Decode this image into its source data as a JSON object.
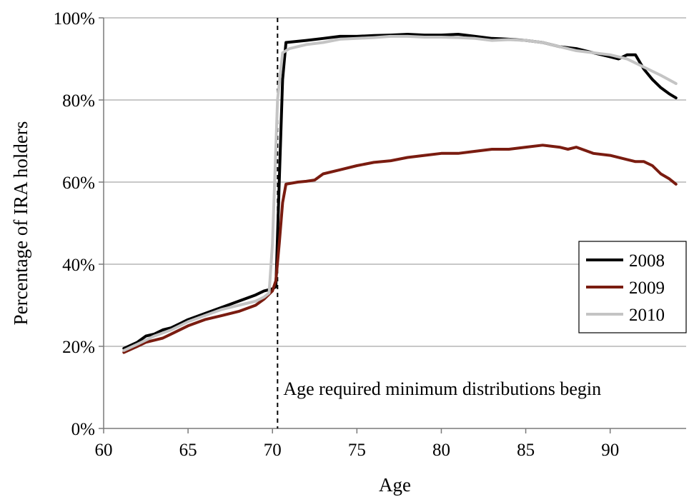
{
  "chart_data": {
    "type": "line",
    "title": "",
    "xlabel": "Age",
    "ylabel": "Percentage of IRA holders",
    "xlim": [
      60,
      94.5
    ],
    "ylim": [
      0,
      100
    ],
    "xticks": [
      60,
      65,
      70,
      75,
      80,
      85,
      90
    ],
    "yticks": [
      0,
      20,
      40,
      60,
      80,
      100
    ],
    "ytick_labels": [
      "0%",
      "20%",
      "40%",
      "60%",
      "80%",
      "100%"
    ],
    "grid": "horizontal",
    "legend": "right-middle",
    "annotation": {
      "text": "Age required minimum distributions begin",
      "x": 70.3
    },
    "series": [
      {
        "name": "2008",
        "color": "#000000",
        "x": [
          61.2,
          62.0,
          62.5,
          63.0,
          63.5,
          64.0,
          65.0,
          66.0,
          67.0,
          68.0,
          69.0,
          69.5,
          70.0,
          70.2,
          70.4,
          70.6,
          70.8,
          72.0,
          73.0,
          74.0,
          75.0,
          76.0,
          77.0,
          78.0,
          79.0,
          80.0,
          81.0,
          82.0,
          83.0,
          84.0,
          85.0,
          86.0,
          87.0,
          88.0,
          89.0,
          90.0,
          90.5,
          91.0,
          91.5,
          92.0,
          92.5,
          93.0,
          93.5,
          93.9
        ],
        "y": [
          19.5,
          21.0,
          22.5,
          23.0,
          24.0,
          24.5,
          26.5,
          28.0,
          29.5,
          31.0,
          32.5,
          33.5,
          34.0,
          34.5,
          60.0,
          85.0,
          94.0,
          94.5,
          95.0,
          95.5,
          95.5,
          95.7,
          95.8,
          96.0,
          95.8,
          95.8,
          96.0,
          95.5,
          95.0,
          94.8,
          94.5,
          94.0,
          93.0,
          92.5,
          91.5,
          90.5,
          90.0,
          91.0,
          91.0,
          87.5,
          85.0,
          83.0,
          81.5,
          80.5
        ]
      },
      {
        "name": "2009",
        "color": "#7a1c10",
        "x": [
          61.2,
          62.0,
          62.5,
          63.0,
          63.5,
          64.0,
          65.0,
          66.0,
          67.0,
          68.0,
          69.0,
          69.5,
          70.0,
          70.2,
          70.4,
          70.6,
          70.8,
          71.5,
          72.0,
          72.5,
          73.0,
          74.0,
          75.0,
          76.0,
          77.0,
          78.0,
          79.0,
          80.0,
          81.0,
          82.0,
          83.0,
          84.0,
          85.0,
          86.0,
          87.0,
          87.5,
          88.0,
          89.0,
          90.0,
          91.0,
          91.5,
          92.0,
          92.5,
          93.0,
          93.5,
          93.9
        ],
        "y": [
          18.5,
          20.0,
          21.0,
          21.5,
          22.0,
          23.0,
          25.0,
          26.5,
          27.5,
          28.5,
          30.0,
          31.5,
          33.5,
          36.0,
          45.0,
          55.0,
          59.5,
          60.0,
          60.2,
          60.5,
          62.0,
          63.0,
          64.0,
          64.8,
          65.2,
          66.0,
          66.5,
          67.0,
          67.0,
          67.5,
          68.0,
          68.0,
          68.5,
          69.0,
          68.5,
          68.0,
          68.5,
          67.0,
          66.5,
          65.5,
          65.0,
          65.0,
          64.0,
          62.0,
          60.8,
          59.5
        ]
      },
      {
        "name": "2010",
        "color": "#c4c4c4",
        "x": [
          61.2,
          62.0,
          63.0,
          64.0,
          65.0,
          66.0,
          67.0,
          68.0,
          69.0,
          69.5,
          69.8,
          70.0,
          70.3,
          70.6,
          71.0,
          72.0,
          73.0,
          74.0,
          75.0,
          76.0,
          77.0,
          78.0,
          79.0,
          80.0,
          81.0,
          82.0,
          83.0,
          84.0,
          85.0,
          86.0,
          87.0,
          88.0,
          89.0,
          90.0,
          91.0,
          92.0,
          93.0,
          93.9
        ],
        "y": [
          19.0,
          20.5,
          22.5,
          24.0,
          26.0,
          27.5,
          29.0,
          30.0,
          31.0,
          32.0,
          33.0,
          45.0,
          80.0,
          91.5,
          92.5,
          93.5,
          94.0,
          94.8,
          95.0,
          95.2,
          95.5,
          95.5,
          95.3,
          95.3,
          95.2,
          95.0,
          94.5,
          94.7,
          94.5,
          94.0,
          93.0,
          92.0,
          91.5,
          91.0,
          90.0,
          88.0,
          86.0,
          84.0
        ]
      }
    ]
  }
}
